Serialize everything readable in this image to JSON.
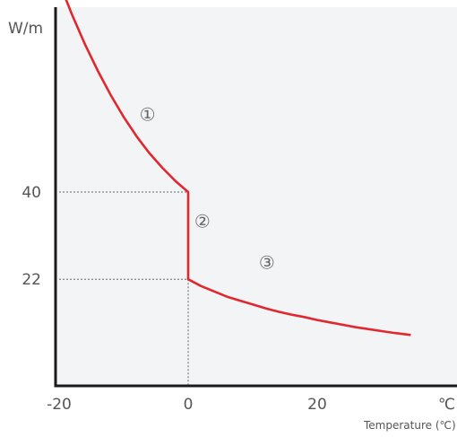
{
  "chart_data": {
    "type": "line",
    "title": "",
    "xlabel": "Temperature (℃)",
    "x_unit_label": "℃",
    "ylabel": "W/m",
    "xlim": [
      -20,
      35
    ],
    "ylim": [
      0,
      90
    ],
    "x_ticks": [
      "-20",
      "0",
      "20"
    ],
    "y_ticks": [
      "40",
      "22"
    ],
    "grid": false,
    "series": [
      {
        "color": "#e0282f",
        "points": [
          [
            -20,
            83.3
          ],
          [
            -18,
            76.6
          ],
          [
            -16,
            70.5
          ],
          [
            -14,
            65.0
          ],
          [
            -12,
            60.0
          ],
          [
            -10,
            55.5
          ],
          [
            -8,
            51.5
          ],
          [
            -6,
            48.0
          ],
          [
            -4,
            45.0
          ],
          [
            -2,
            42.3
          ],
          [
            0,
            40
          ],
          [
            0,
            22
          ],
          [
            2,
            20.6
          ],
          [
            4,
            19.5
          ],
          [
            6,
            18.4
          ],
          [
            8,
            17.6
          ],
          [
            10,
            16.8
          ],
          [
            12,
            16.0
          ],
          [
            14,
            15.3
          ],
          [
            16,
            14.7
          ],
          [
            18,
            14.2
          ],
          [
            20,
            13.6
          ],
          [
            22,
            13.1
          ],
          [
            24,
            12.6
          ],
          [
            26,
            12.1
          ],
          [
            28,
            11.7
          ],
          [
            30,
            11.3
          ],
          [
            32,
            10.9
          ],
          [
            34.5,
            10.5
          ]
        ]
      }
    ],
    "reference_lines": [
      {
        "from": [
          -20,
          40
        ],
        "to": [
          0,
          40
        ]
      },
      {
        "from": [
          -20,
          22
        ],
        "to": [
          0,
          22
        ]
      },
      {
        "from": [
          0,
          22
        ],
        "to": [
          0,
          0
        ]
      }
    ],
    "annotations": [
      {
        "text": "①",
        "x": -6.3,
        "y": 56
      },
      {
        "text": "②",
        "x": 2.2,
        "y": 34
      },
      {
        "text": "③",
        "x": 12.2,
        "y": 25.5
      }
    ]
  },
  "colors": {
    "plot_background": "#f3f4f6",
    "axis": "#1a1a1a",
    "line": "#e0282f",
    "reference": "#666666"
  }
}
